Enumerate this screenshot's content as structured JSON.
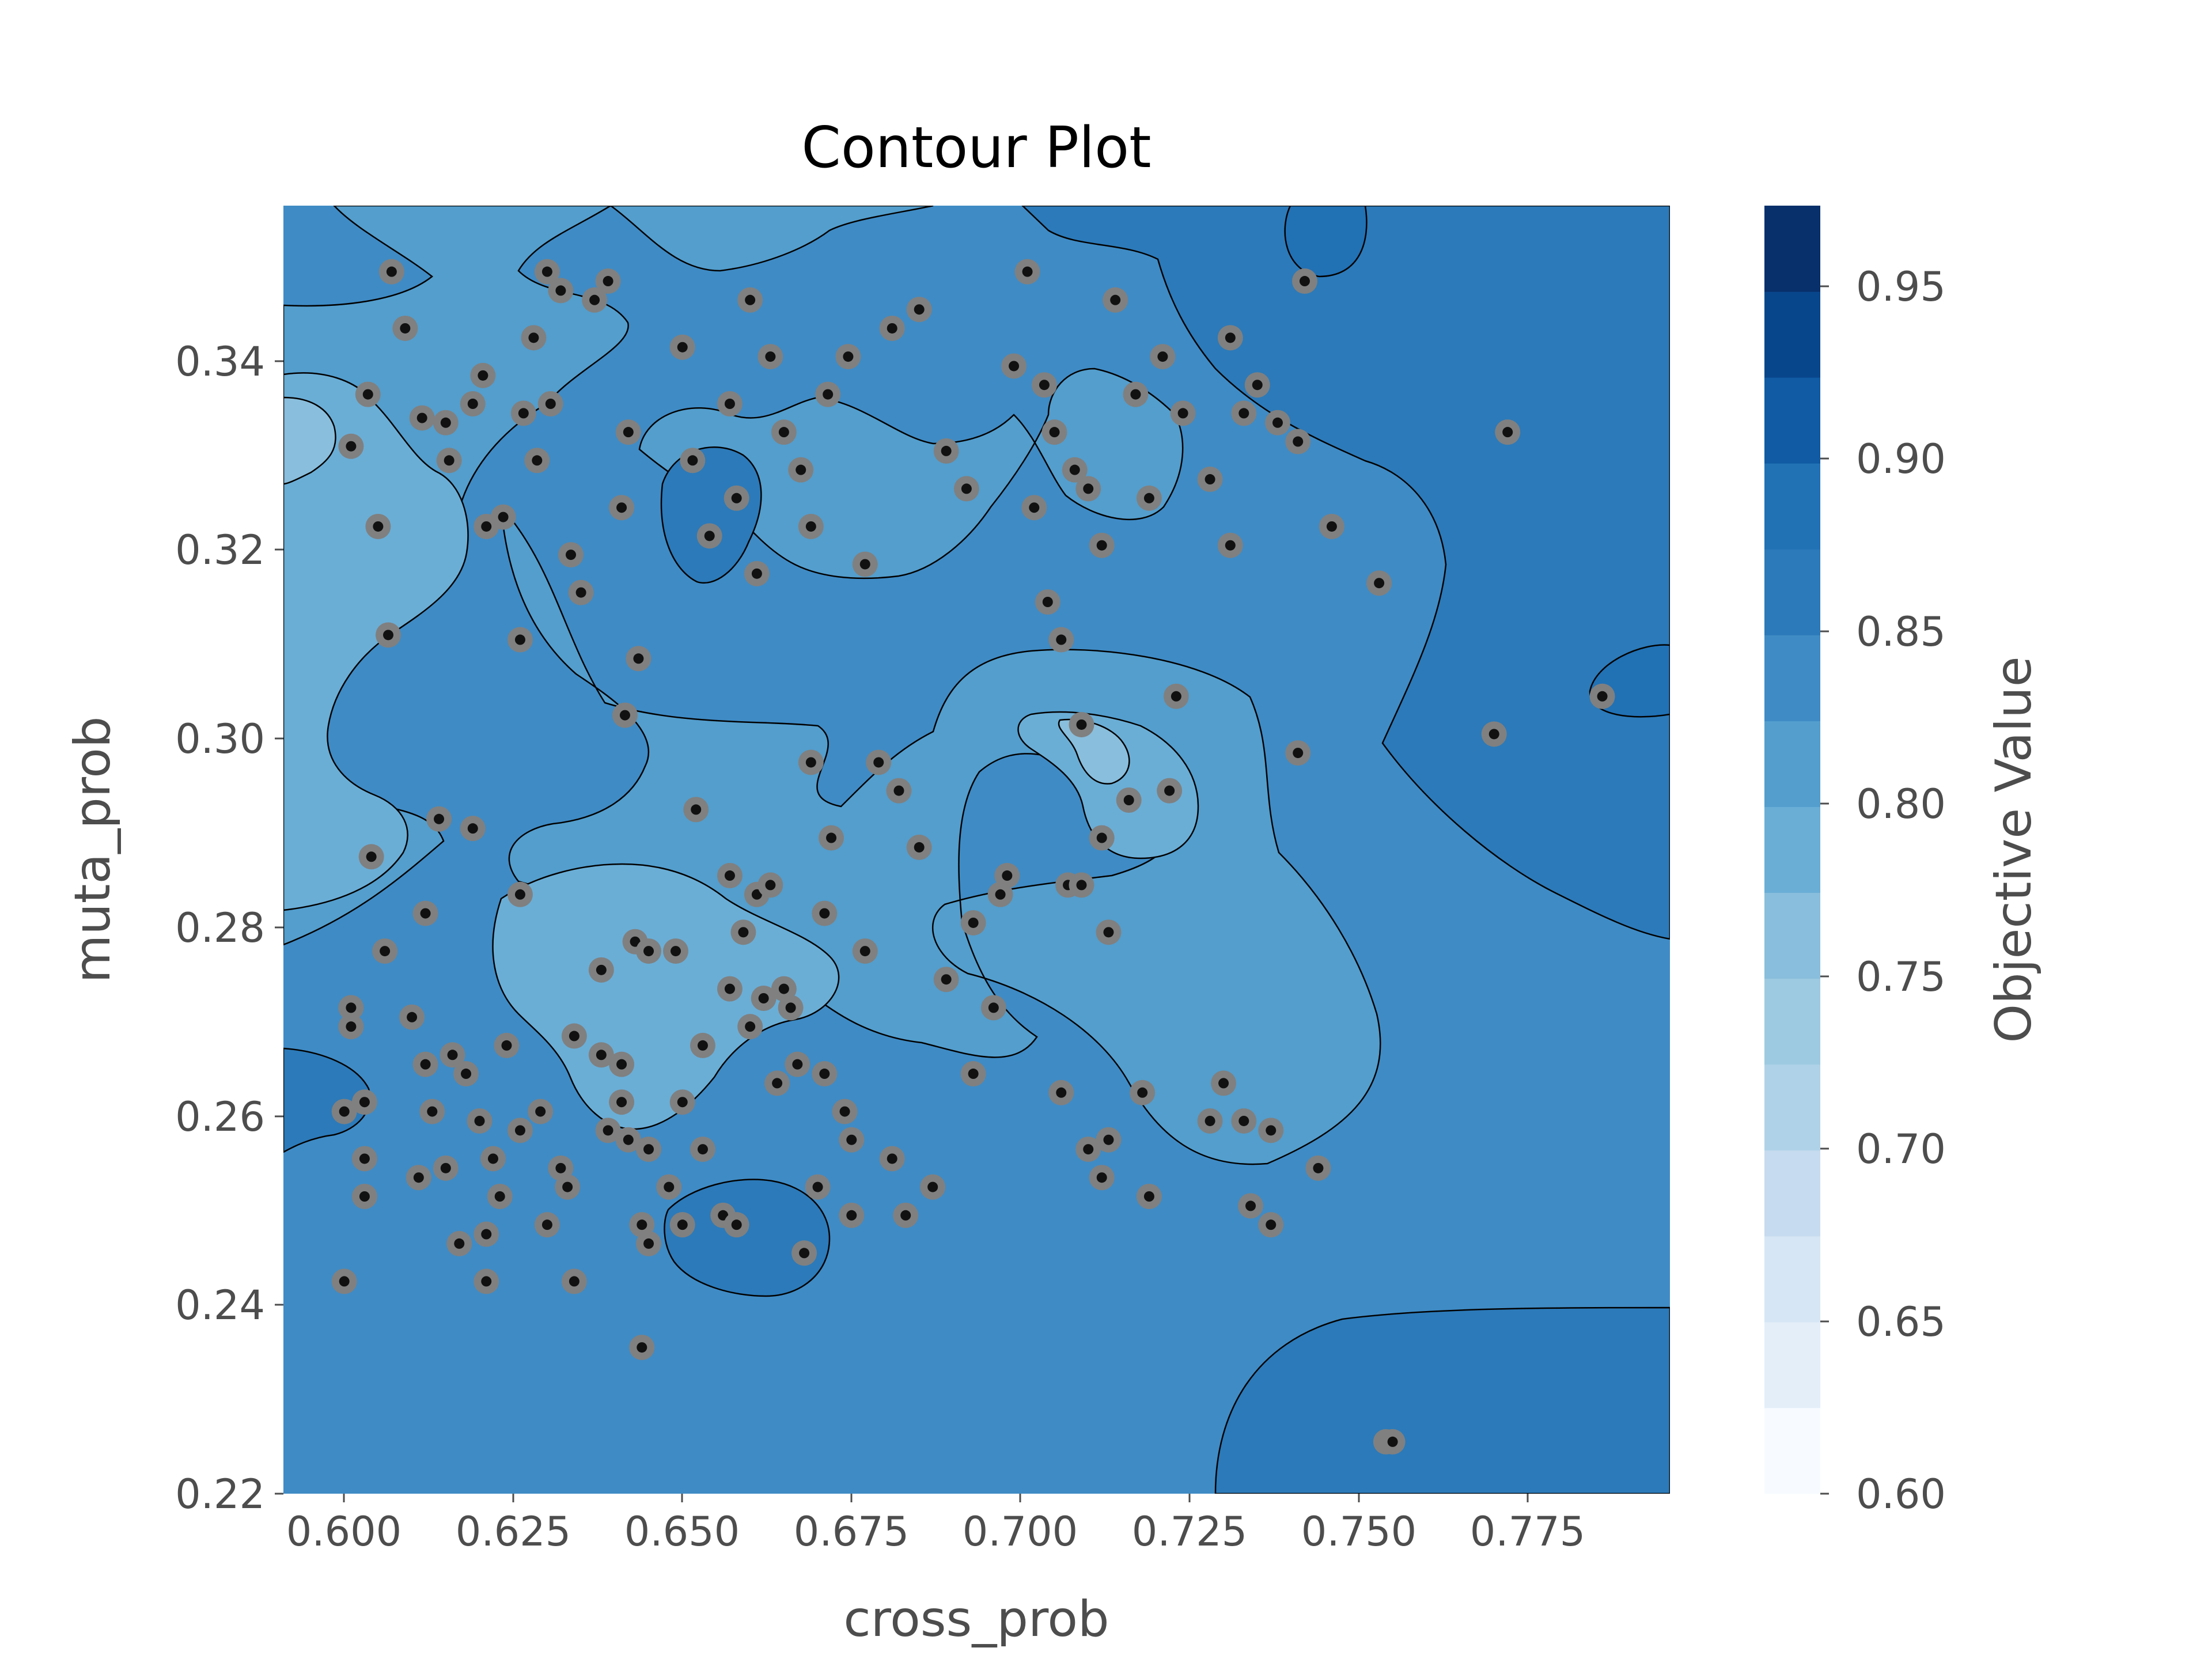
{
  "chart_data": {
    "type": "contour",
    "title": "Contour Plot",
    "xlabel": "cross_prob",
    "ylabel": "muta_prob",
    "colorbar_label": "Objective Value",
    "colormap": "Blues",
    "xlim": [
      0.5915,
      0.7965
    ],
    "ylim": [
      0.22,
      0.3565
    ],
    "xticks": [
      0.6,
      0.625,
      0.65,
      0.675,
      0.7,
      0.725,
      0.75,
      0.775
    ],
    "xtick_labels": [
      "0.600",
      "0.625",
      "0.650",
      "0.675",
      "0.700",
      "0.725",
      "0.750",
      "0.775"
    ],
    "yticks": [
      0.22,
      0.24,
      0.26,
      0.28,
      0.3,
      0.32,
      0.34
    ],
    "ytick_labels": [
      "0.22",
      "0.24",
      "0.26",
      "0.28",
      "0.30",
      "0.32",
      "0.34"
    ],
    "colorbar_range": [
      0.6,
      0.975
    ],
    "colorbar_levels": 15,
    "colorbar_ticks": [
      0.6,
      0.65,
      0.7,
      0.75,
      0.8,
      0.85,
      0.9,
      0.95
    ],
    "colorbar_tick_labels": [
      "0.60",
      "0.65",
      "0.70",
      "0.75",
      "0.80",
      "0.85",
      "0.90",
      "0.95"
    ],
    "trials": [
      [
        0.6075,
        0.3495
      ],
      [
        0.6095,
        0.3435
      ],
      [
        0.604,
        0.3365
      ],
      [
        0.6015,
        0.331
      ],
      [
        0.6055,
        0.3225
      ],
      [
        0.607,
        0.311
      ],
      [
        0.612,
        0.334
      ],
      [
        0.616,
        0.3295
      ],
      [
        0.6195,
        0.3355
      ],
      [
        0.621,
        0.3385
      ],
      [
        0.624,
        0.3235
      ],
      [
        0.627,
        0.3345
      ],
      [
        0.6285,
        0.3425
      ],
      [
        0.6305,
        0.3495
      ],
      [
        0.6325,
        0.3475
      ],
      [
        0.631,
        0.3355
      ],
      [
        0.629,
        0.3295
      ],
      [
        0.634,
        0.3195
      ],
      [
        0.6355,
        0.3155
      ],
      [
        0.6375,
        0.3465
      ],
      [
        0.6395,
        0.3485
      ],
      [
        0.6425,
        0.3325
      ],
      [
        0.6415,
        0.3245
      ],
      [
        0.644,
        0.3085
      ],
      [
        0.642,
        0.3025
      ],
      [
        0.6505,
        0.3415
      ],
      [
        0.652,
        0.3295
      ],
      [
        0.6545,
        0.3215
      ],
      [
        0.6575,
        0.3355
      ],
      [
        0.6585,
        0.3255
      ],
      [
        0.6615,
        0.3175
      ],
      [
        0.6605,
        0.3465
      ],
      [
        0.6635,
        0.3405
      ],
      [
        0.6655,
        0.3325
      ],
      [
        0.668,
        0.3285
      ],
      [
        0.6695,
        0.3225
      ],
      [
        0.672,
        0.3365
      ],
      [
        0.675,
        0.3405
      ],
      [
        0.6775,
        0.3185
      ],
      [
        0.6815,
        0.3435
      ],
      [
        0.6855,
        0.3455
      ],
      [
        0.6895,
        0.3305
      ],
      [
        0.6925,
        0.3265
      ],
      [
        0.6995,
        0.3395
      ],
      [
        0.7015,
        0.3495
      ],
      [
        0.704,
        0.3375
      ],
      [
        0.7055,
        0.3325
      ],
      [
        0.7085,
        0.3285
      ],
      [
        0.7105,
        0.3265
      ],
      [
        0.7125,
        0.3205
      ],
      [
        0.7145,
        0.3465
      ],
      [
        0.7175,
        0.3365
      ],
      [
        0.7195,
        0.3255
      ],
      [
        0.7215,
        0.3405
      ],
      [
        0.7245,
        0.3345
      ],
      [
        0.7285,
        0.3275
      ],
      [
        0.7315,
        0.3425
      ],
      [
        0.7335,
        0.3345
      ],
      [
        0.7355,
        0.3375
      ],
      [
        0.7385,
        0.3335
      ],
      [
        0.7415,
        0.3315
      ],
      [
        0.7425,
        0.3485
      ],
      [
        0.7465,
        0.3225
      ],
      [
        0.7535,
        0.3165
      ],
      [
        0.7725,
        0.3325
      ],
      [
        0.7025,
        0.3245
      ],
      [
        0.7065,
        0.3105
      ],
      [
        0.7045,
        0.3145
      ],
      [
        0.7315,
        0.3205
      ],
      [
        0.6265,
        0.3105
      ],
      [
        0.6215,
        0.3225
      ],
      [
        0.6155,
        0.3335
      ],
      [
        0.7865,
        0.3045
      ],
      [
        0.7705,
        0.3005
      ],
      [
        0.7095,
        0.3015
      ],
      [
        0.7165,
        0.2935
      ],
      [
        0.7125,
        0.2895
      ],
      [
        0.7225,
        0.2945
      ],
      [
        0.7235,
        0.3045
      ],
      [
        0.7415,
        0.2985
      ],
      [
        0.6695,
        0.2975
      ],
      [
        0.6795,
        0.2975
      ],
      [
        0.6825,
        0.2945
      ],
      [
        0.6725,
        0.2895
      ],
      [
        0.6855,
        0.2885
      ],
      [
        0.6525,
        0.2925
      ],
      [
        0.6195,
        0.2905
      ],
      [
        0.6145,
        0.2915
      ],
      [
        0.6045,
        0.2875
      ],
      [
        0.6125,
        0.2815
      ],
      [
        0.6065,
        0.2775
      ],
      [
        0.6265,
        0.2835
      ],
      [
        0.6385,
        0.2755
      ],
      [
        0.6435,
        0.2785
      ],
      [
        0.6455,
        0.2775
      ],
      [
        0.6495,
        0.2775
      ],
      [
        0.6575,
        0.2855
      ],
      [
        0.6615,
        0.2835
      ],
      [
        0.6595,
        0.2795
      ],
      [
        0.6635,
        0.2845
      ],
      [
        0.6715,
        0.2815
      ],
      [
        0.6775,
        0.2775
      ],
      [
        0.6935,
        0.2805
      ],
      [
        0.6975,
        0.2835
      ],
      [
        0.6985,
        0.2855
      ],
      [
        0.7075,
        0.2845
      ],
      [
        0.7095,
        0.2845
      ],
      [
        0.7135,
        0.2795
      ],
      [
        0.6895,
        0.2745
      ],
      [
        0.6965,
        0.2715
      ],
      [
        0.6575,
        0.2735
      ],
      [
        0.6625,
        0.2725
      ],
      [
        0.6655,
        0.2735
      ],
      [
        0.6605,
        0.2695
      ],
      [
        0.6665,
        0.2715
      ],
      [
        0.6535,
        0.2675
      ],
      [
        0.6415,
        0.2655
      ],
      [
        0.6345,
        0.2685
      ],
      [
        0.6385,
        0.2665
      ],
      [
        0.6245,
        0.2675
      ],
      [
        0.6165,
        0.2665
      ],
      [
        0.6185,
        0.2645
      ],
      [
        0.6125,
        0.2655
      ],
      [
        0.6105,
        0.2705
      ],
      [
        0.6015,
        0.2715
      ],
      [
        0.6015,
        0.2695
      ],
      [
        0.6035,
        0.2615
      ],
      [
        0.6005,
        0.2605
      ],
      [
        0.6135,
        0.2605
      ],
      [
        0.6155,
        0.2545
      ],
      [
        0.6115,
        0.2535
      ],
      [
        0.6035,
        0.2555
      ],
      [
        0.6205,
        0.2595
      ],
      [
        0.6225,
        0.2555
      ],
      [
        0.6265,
        0.2585
      ],
      [
        0.6295,
        0.2605
      ],
      [
        0.6325,
        0.2545
      ],
      [
        0.6335,
        0.2525
      ],
      [
        0.6305,
        0.2485
      ],
      [
        0.6395,
        0.2585
      ],
      [
        0.6415,
        0.2615
      ],
      [
        0.6425,
        0.2575
      ],
      [
        0.6455,
        0.2565
      ],
      [
        0.6505,
        0.2615
      ],
      [
        0.6535,
        0.2565
      ],
      [
        0.6485,
        0.2525
      ],
      [
        0.6445,
        0.2485
      ],
      [
        0.6455,
        0.2465
      ],
      [
        0.6505,
        0.2485
      ],
      [
        0.6565,
        0.2495
      ],
      [
        0.6585,
        0.2485
      ],
      [
        0.6645,
        0.2635
      ],
      [
        0.6675,
        0.2655
      ],
      [
        0.6715,
        0.2645
      ],
      [
        0.6745,
        0.2605
      ],
      [
        0.6755,
        0.2575
      ],
      [
        0.6705,
        0.2525
      ],
      [
        0.6685,
        0.2455
      ],
      [
        0.6755,
        0.2495
      ],
      [
        0.6815,
        0.2555
      ],
      [
        0.6835,
        0.2495
      ],
      [
        0.6875,
        0.2525
      ],
      [
        0.6935,
        0.2645
      ],
      [
        0.7065,
        0.2625
      ],
      [
        0.7105,
        0.2565
      ],
      [
        0.7135,
        0.2575
      ],
      [
        0.7125,
        0.2535
      ],
      [
        0.7185,
        0.2625
      ],
      [
        0.7195,
        0.2515
      ],
      [
        0.7285,
        0.2595
      ],
      [
        0.7305,
        0.2635
      ],
      [
        0.7335,
        0.2595
      ],
      [
        0.7375,
        0.2585
      ],
      [
        0.7345,
        0.2505
      ],
      [
        0.7375,
        0.2485
      ],
      [
        0.7445,
        0.2545
      ],
      [
        0.6035,
        0.2515
      ],
      [
        0.6005,
        0.2425
      ],
      [
        0.6175,
        0.2465
      ],
      [
        0.6215,
        0.2475
      ],
      [
        0.6215,
        0.2425
      ],
      [
        0.6235,
        0.2515
      ],
      [
        0.6345,
        0.2425
      ],
      [
        0.6445,
        0.2355
      ],
      [
        0.7545,
        0.2255
      ],
      [
        0.7555,
        0.2255
      ]
    ]
  }
}
